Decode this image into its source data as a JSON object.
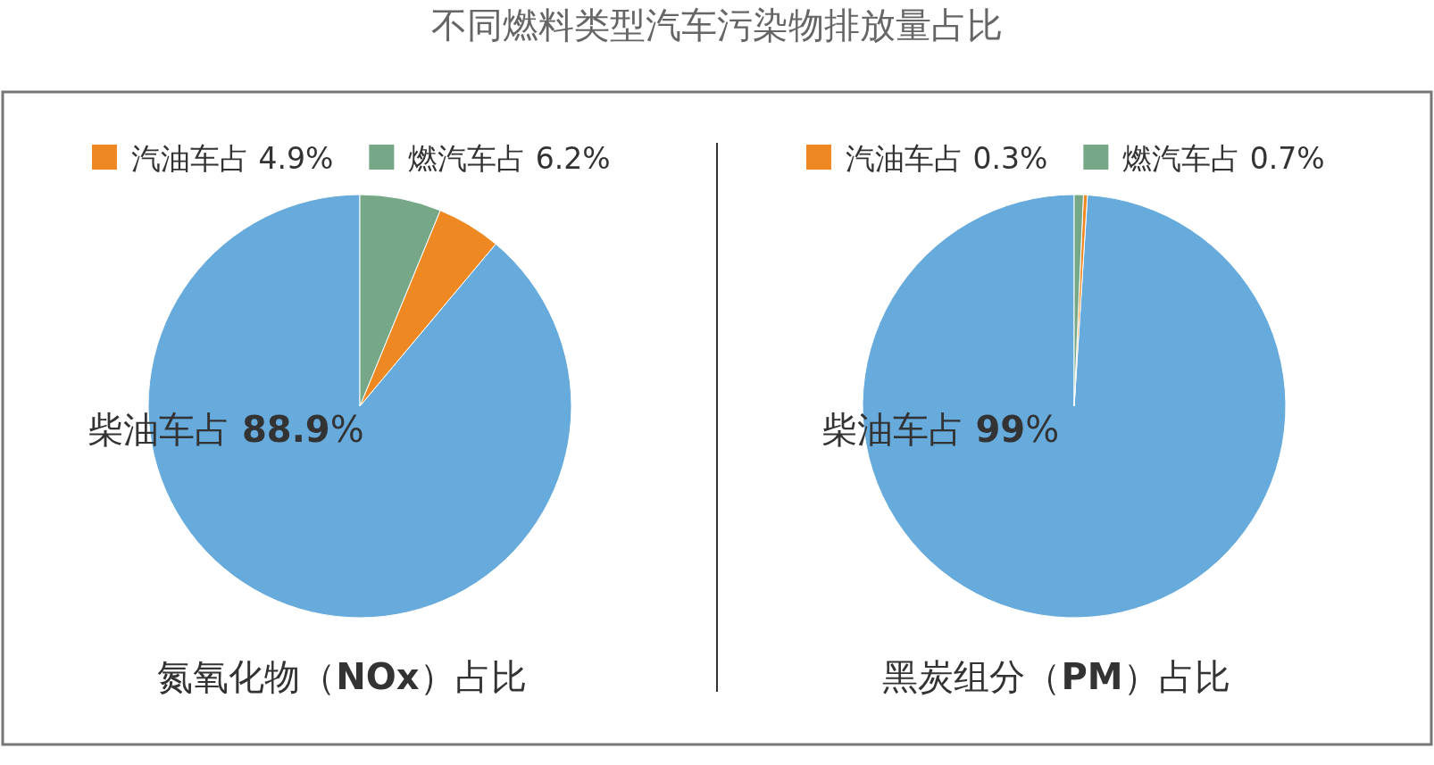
{
  "chart_data": [
    {
      "type": "pie",
      "title": "氮氧化物（NOx）占比",
      "annotations": [
        "不同燃料类型汽车污染物排放量占比"
      ],
      "categories": [
        "柴油车占",
        "汽油车占",
        "燃汽车占"
      ],
      "values": [
        88.9,
        4.9,
        6.2
      ],
      "value_labels": [
        "88.9%",
        "4.9%",
        "6.2%"
      ],
      "colors": [
        "#67aadc",
        "#ee8822",
        "#76a887"
      ],
      "legend": "top"
    },
    {
      "type": "pie",
      "title": "黑炭组分（PM）占比",
      "categories": [
        "柴油车占",
        "汽油车占",
        "燃汽车占"
      ],
      "values": [
        99,
        0.3,
        0.7
      ],
      "value_labels": [
        "99%",
        "0.3%",
        "0.7%"
      ],
      "colors": [
        "#67aadc",
        "#ee8822",
        "#76a887"
      ],
      "legend": "top"
    }
  ]
}
